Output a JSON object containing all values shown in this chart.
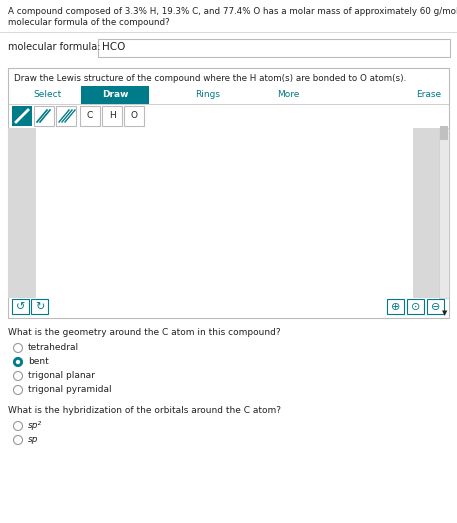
{
  "question_line1": "A compound composed of 3.3% H, 19.3% C, and 77.4% O has a molar mass of approximately 60 g/mol. What is the",
  "question_line2": "molecular formula of the compound?",
  "mol_formula_label": "molecular formula:",
  "mol_formula_value": "HCO",
  "lewis_label": "Draw the Lewis structure of the compound where the H atom(s) are bonded to O atom(s).",
  "toolbar_items": [
    "Select",
    "Draw",
    "Rings",
    "More",
    "Erase"
  ],
  "atom_buttons": [
    "C",
    "H",
    "O"
  ],
  "geometry_question": "What is the geometry around the C atom in this compound?",
  "geometry_options": [
    "tetrahedral",
    "bent",
    "trigonal planar",
    "trigonal pyramidal"
  ],
  "geometry_selected": 1,
  "hybrid_question": "What is the hybridization of the orbitals around the C atom?",
  "hybrid_options": [
    "sp²",
    "sp"
  ],
  "teal": "#007B8A",
  "bg_white": "#FFFFFF",
  "bg_gray": "#D8D8D8",
  "bg_gray2": "#E8E8E8",
  "border_gray": "#BBBBBB",
  "text_dark": "#222222",
  "radio_border": "#999999",
  "scrollbar_gray": "#C0C0C0"
}
